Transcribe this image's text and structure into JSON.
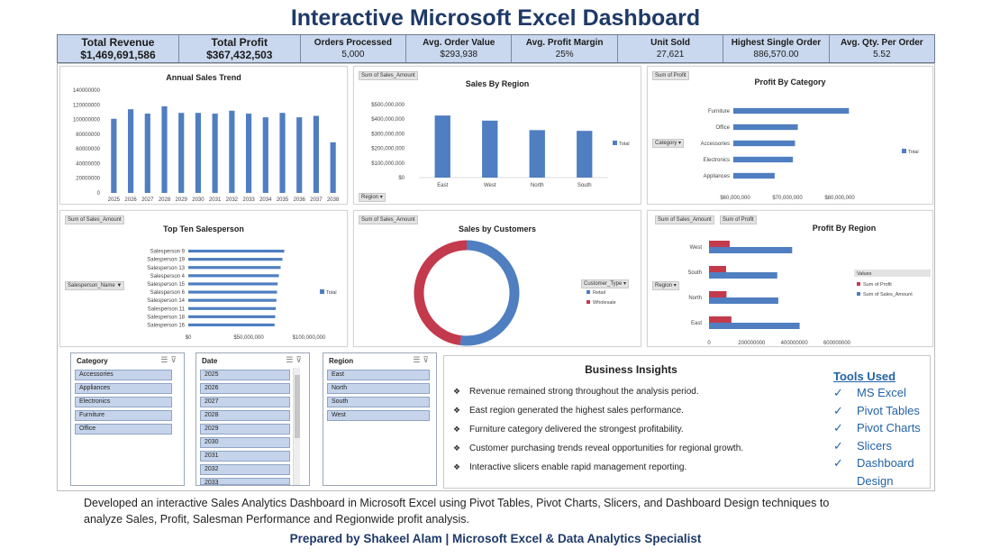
{
  "title": "Interactive Microsoft Excel Dashboard",
  "colors": {
    "bar": "#4f7ec1",
    "profit": "#c33a4d",
    "title": "#1f3a68",
    "kpi_bg": "#c9d8ee",
    "tools": "#2262a6"
  },
  "kpis": [
    {
      "label": "Total Revenue",
      "value": "$1,469,691,586"
    },
    {
      "label": "Total Profit",
      "value": "$367,432,503"
    },
    {
      "label": "Orders Processed",
      "value": "5,000"
    },
    {
      "label": "Avg. Order Value",
      "value": "$293,938"
    },
    {
      "label": "Avg. Profit Margin",
      "value": "25%"
    },
    {
      "label": "Unit Sold",
      "value": "27,621"
    },
    {
      "label": "Highest Single Order",
      "value": "886,570.00"
    },
    {
      "label": "Avg. Qty. Per Order",
      "value": "5.52"
    }
  ],
  "chart_data": [
    {
      "type": "bar",
      "title": "Annual Sales Trend",
      "categories": [
        "2025",
        "2026",
        "2027",
        "2028",
        "2029",
        "2030",
        "2031",
        "2032",
        "2033",
        "2034",
        "2035",
        "2036",
        "2037",
        "2038"
      ],
      "values": [
        101000000,
        114000000,
        108000000,
        118000000,
        109000000,
        109000000,
        108000000,
        112000000,
        108000000,
        103000000,
        109000000,
        103000000,
        105000000,
        69000000
      ],
      "ylim": [
        0,
        140000000
      ],
      "yticks": [
        "0",
        "20000000",
        "40000000",
        "60000000",
        "80000000",
        "100000000",
        "120000000",
        "140000000"
      ]
    },
    {
      "type": "bar",
      "title": "Sales By Region",
      "field_button": "Sum of Sales_Amount",
      "axis_button": "Region",
      "categories": [
        "East",
        "West",
        "North",
        "South"
      ],
      "values": [
        425000000,
        390000000,
        325000000,
        320000000
      ],
      "ylim": [
        0,
        500000000
      ],
      "yticks": [
        "$0",
        "$100,000,000",
        "$200,000,000",
        "$300,000,000",
        "$400,000,000",
        "$500,000,000"
      ],
      "legend": "Total"
    },
    {
      "type": "bar",
      "title": "Profit By Category",
      "field_button": "Sum of Profit",
      "axis_button": "Category",
      "categories": [
        "Furniture",
        "Office",
        "Accessories",
        "Electronics",
        "Appliances"
      ],
      "values": [
        81500000,
        74200000,
        73800000,
        73500000,
        70900000
      ],
      "xlim": [
        65000000,
        83000000
      ],
      "xticks": [
        "$60,000,000",
        "$70,000,000",
        "$80,000,000"
      ],
      "legend": "Total"
    },
    {
      "type": "bar",
      "title": "Top Ten Salesperson",
      "field_button": "Sum of Sales_Amount",
      "axis_button": "Salesperson_Name",
      "categories": [
        "Salesperson 9",
        "Salesperson 19",
        "Salesperson 13",
        "Salesperson 4",
        "Salesperson 15",
        "Salesperson 6",
        "Salesperson 14",
        "Salesperson 11",
        "Salesperson 18",
        "Salesperson 16"
      ],
      "values": [
        79500000,
        78000000,
        76500000,
        75000000,
        74000000,
        73500000,
        73000000,
        72500000,
        72000000,
        71500000
      ],
      "xlim": [
        0,
        100000000
      ],
      "xticks": [
        "$0",
        "$50,000,000",
        "$100,000,000"
      ],
      "legend": "Total"
    },
    {
      "type": "pie",
      "title": "Sales by Customers",
      "field_button": "Sum of Sales_Amount",
      "axis_button": "Customer_Type",
      "categories": [
        "Retail",
        "Wholesale"
      ],
      "values": [
        52,
        48
      ]
    },
    {
      "type": "bar",
      "title": "Profit By Region",
      "field_button": "Sum of Sales_Amount",
      "field_button2": "Sum of Profit",
      "axis_button": "Region",
      "legend_title": "Values",
      "categories": [
        "West",
        "South",
        "North",
        "East"
      ],
      "series": [
        {
          "name": "Sum of Profit",
          "values": [
            97000000,
            80000000,
            82000000,
            105000000
          ]
        },
        {
          "name": "Sum of Sales_Amount",
          "values": [
            390000000,
            320000000,
            325000000,
            425000000
          ]
        }
      ],
      "xlim": [
        0,
        600000000
      ],
      "xticks": [
        "0",
        "200000000",
        "400000000",
        "600000000"
      ]
    }
  ],
  "slicers": [
    {
      "header": "Category",
      "items": [
        "Accessories",
        "Appliances",
        "Electronics",
        "Furniture",
        "Office"
      ]
    },
    {
      "header": "Date",
      "items": [
        "2025",
        "2026",
        "2027",
        "2028",
        "2029",
        "2030",
        "2031",
        "2032",
        "2033"
      ]
    },
    {
      "header": "Region",
      "items": [
        "East",
        "North",
        "South",
        "West"
      ]
    }
  ],
  "insights": {
    "heading": "Business Insights",
    "bullets": [
      "Revenue remained strong throughout the analysis period.",
      "East region generated the highest sales performance.",
      "Furniture category delivered the strongest profitability.",
      "Customer purchasing trends reveal opportunities for regional growth.",
      "Interactive slicers enable rapid management reporting."
    ]
  },
  "tools": {
    "heading": "Tools Used",
    "items": [
      "MS Excel",
      "Pivot Tables",
      "Pivot Charts",
      "Slicers",
      "Dashboard"
    ],
    "continuation": "Design"
  },
  "footer": {
    "description": "Developed an interactive Sales Analytics Dashboard in Microsoft Excel using Pivot Tables, Pivot Charts, Slicers, and Dashboard Design techniques to analyze Sales, Profit, Salesman Performance and Regionwide profit analysis.",
    "credit": "Prepared by Shakeel Alam | Microsoft Excel & Data Analytics Specialist"
  }
}
